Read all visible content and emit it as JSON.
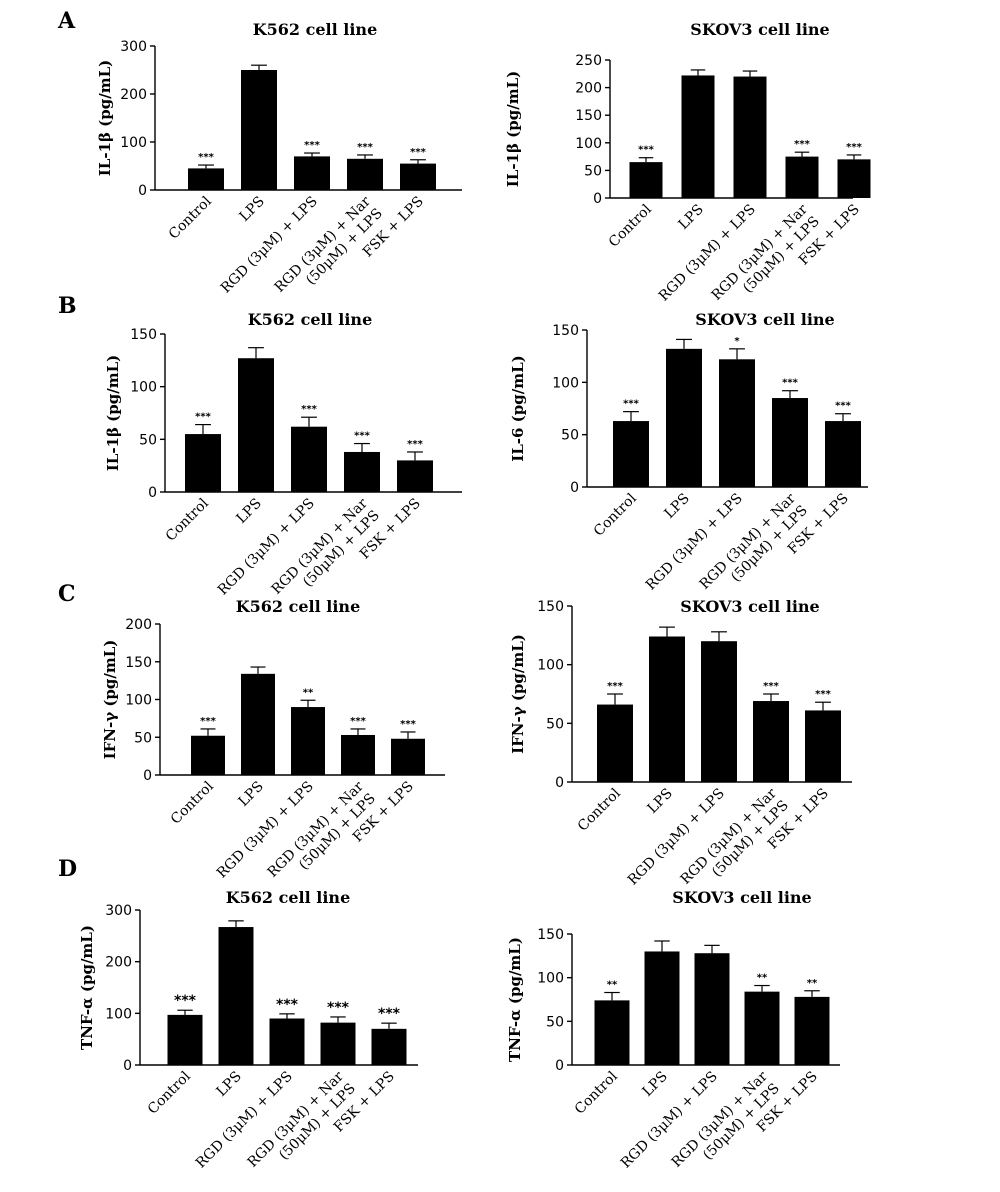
{
  "panel_letters": {
    "A": "A",
    "B": "B",
    "C": "C",
    "D": "D"
  },
  "categories": [
    "Control",
    "LPS",
    "RGD (3μM) + LPS",
    "RGD (3μM) + Nar",
    "(50μM) + LPS",
    "FSK + LPS"
  ],
  "chart_data": [
    {
      "type": "bar",
      "panel": "A",
      "title": "K562 cell line",
      "ylabel": "IL-1β (pg/mL)",
      "ylim": [
        0,
        300
      ],
      "yticks": [
        0,
        100,
        200,
        300
      ],
      "categories": [
        "Control",
        "LPS",
        "RGD (3μM) + LPS",
        "RGD (3μM) + Nar (50μM) + LPS",
        "FSK + LPS"
      ],
      "values": [
        45,
        250,
        70,
        65,
        55
      ],
      "errors": [
        7,
        10,
        7,
        8,
        8
      ],
      "significance": [
        "***",
        "",
        "***",
        "***",
        "***"
      ]
    },
    {
      "type": "bar",
      "panel": "A",
      "title": "SKOV3 cell line",
      "ylabel": "IL-1β (pg/mL)",
      "ylim": [
        0,
        250
      ],
      "yticks": [
        0,
        50,
        100,
        150,
        200,
        250
      ],
      "categories": [
        "Control",
        "LPS",
        "RGD (3μM) + LPS",
        "RGD (3μM) + Nar (50μM) + LPS",
        "FSK + LPS"
      ],
      "values": [
        65,
        222,
        220,
        75,
        70
      ],
      "errors": [
        8,
        10,
        10,
        8,
        8
      ],
      "significance": [
        "***",
        "",
        "",
        "***",
        "***"
      ]
    },
    {
      "type": "bar",
      "panel": "B",
      "title": "K562 cell line",
      "ylabel": "IL-1β (pg/mL)",
      "ylim": [
        0,
        150
      ],
      "yticks": [
        0,
        50,
        100,
        150
      ],
      "categories": [
        "Control",
        "LPS",
        "RGD (3μM) + LPS",
        "RGD (3μM) + Nar (50μM) + LPS",
        "FSK + LPS"
      ],
      "values": [
        55,
        127,
        62,
        38,
        30
      ],
      "errors": [
        9,
        10,
        9,
        8,
        8
      ],
      "significance": [
        "***",
        "",
        "***",
        "***",
        "***"
      ]
    },
    {
      "type": "bar",
      "panel": "B",
      "title": "SKOV3 cell line",
      "ylabel": "IL-6 (pg/mL)",
      "ylim": [
        0,
        150
      ],
      "yticks": [
        0,
        50,
        100,
        150
      ],
      "categories": [
        "Control",
        "LPS",
        "RGD (3μM) + LPS",
        "RGD (3μM) + Nar (50μM) + LPS",
        "FSK + LPS"
      ],
      "values": [
        63,
        132,
        122,
        85,
        63
      ],
      "errors": [
        9,
        9,
        10,
        7,
        7
      ],
      "significance": [
        "***",
        "",
        "*",
        "***",
        "***"
      ]
    },
    {
      "type": "bar",
      "panel": "C",
      "title": "K562 cell line",
      "ylabel": "IFN-γ (pg/mL)",
      "ylim": [
        0,
        200
      ],
      "yticks": [
        0,
        50,
        100,
        150,
        200
      ],
      "categories": [
        "Control",
        "LPS",
        "RGD (3μM) + LPS",
        "RGD (3μM) + Nar (50μM) + LPS",
        "FSK + LPS"
      ],
      "values": [
        52,
        134,
        90,
        53,
        48
      ],
      "errors": [
        9,
        9,
        9,
        8,
        9
      ],
      "significance": [
        "***",
        "",
        "**",
        "***",
        "***"
      ]
    },
    {
      "type": "bar",
      "panel": "C",
      "title": "SKOV3 cell line",
      "ylabel": "IFN-γ (pg/mL)",
      "ylim": [
        0,
        150
      ],
      "yticks": [
        0,
        50,
        100,
        150
      ],
      "categories": [
        "Control",
        "LPS",
        "RGD (3μM) + LPS",
        "RGD (3μM) + Nar (50μM) + LPS",
        "FSK + LPS"
      ],
      "values": [
        66,
        124,
        120,
        69,
        61
      ],
      "errors": [
        9,
        8,
        8,
        6,
        7
      ],
      "significance": [
        "***",
        "",
        "",
        "***",
        "***"
      ]
    },
    {
      "type": "bar",
      "panel": "D",
      "title": "K562 cell line",
      "ylabel": "TNF-α (pg/mL)",
      "ylim": [
        0,
        300
      ],
      "yticks": [
        0,
        100,
        200,
        300
      ],
      "categories": [
        "Control",
        "LPS",
        "RGD (3μM) + LPS",
        "RGD (3μM) + Nar (50μM) + LPS",
        "FSK + LPS"
      ],
      "values": [
        97,
        267,
        90,
        82,
        70
      ],
      "errors": [
        9,
        12,
        9,
        11,
        11
      ],
      "significance": [
        "***",
        "",
        "***",
        "***",
        "***"
      ]
    },
    {
      "type": "bar",
      "panel": "D",
      "title": "SKOV3 cell line",
      "ylabel": "TNF-α (pg/mL)",
      "ylim": [
        0,
        150
      ],
      "yticks": [
        0,
        50,
        100,
        150
      ],
      "categories": [
        "Control",
        "LPS",
        "RGD (3μM) + LPS",
        "RGD (3μM) + Nar (50μM) + LPS",
        "FSK + LPS"
      ],
      "values": [
        74,
        130,
        128,
        84,
        78
      ],
      "errors": [
        9,
        12,
        9,
        7,
        7
      ],
      "significance": [
        "**",
        "",
        "",
        "**",
        "**"
      ]
    }
  ]
}
